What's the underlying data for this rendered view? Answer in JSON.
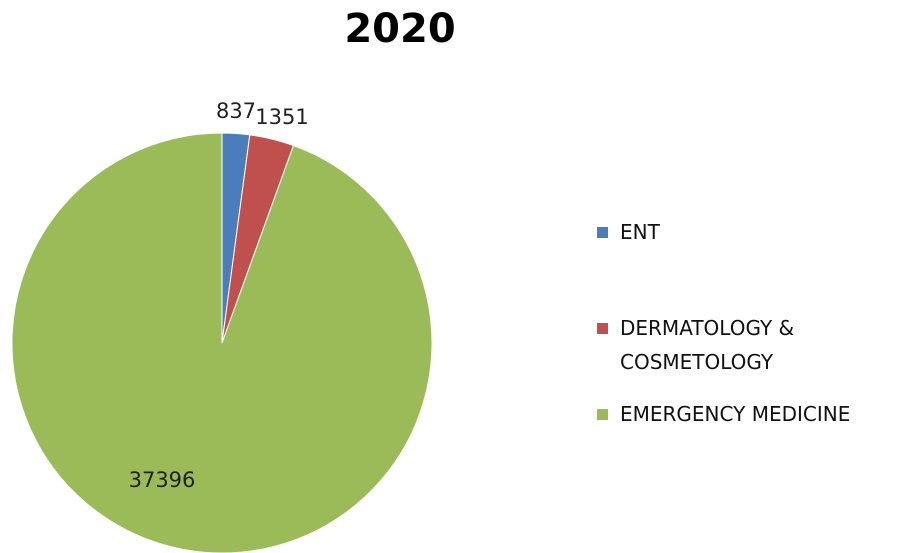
{
  "chart_data": {
    "type": "pie",
    "title": "2020",
    "categories": [
      "ENT",
      "DERMATOLOGY & COSMETOLOGY",
      "EMERGENCY MEDICINE"
    ],
    "values": [
      837,
      1351,
      37396
    ],
    "colors": [
      "#4a7ebb",
      "#c0504d",
      "#9bbb59"
    ],
    "legend": "right",
    "data_labels": true
  }
}
